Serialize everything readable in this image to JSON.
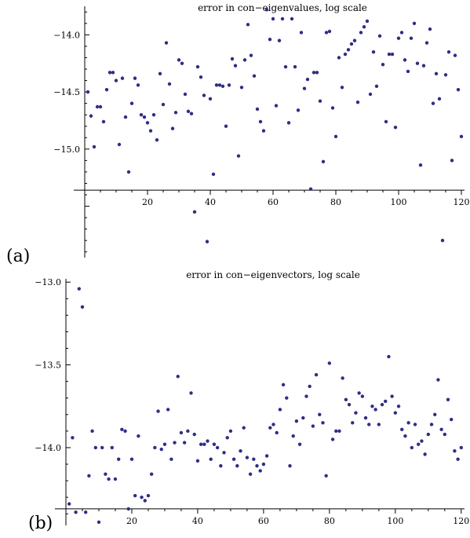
{
  "chart_data": [
    {
      "type": "scatter",
      "panel_label": "(a)",
      "title": "error in con−eigenvalues, log scale",
      "xlabel": "",
      "ylabel": "",
      "log_scale": true,
      "xlim": [
        0,
        121
      ],
      "ylim": [
        -15.95,
        -13.75
      ],
      "x_axis_at_y": -15.36,
      "x_ticks": [
        20,
        40,
        60,
        80,
        100,
        120
      ],
      "y_ticks": [
        -15.0,
        -14.5,
        -14.0
      ],
      "y_tick_labels": [
        "−15.0",
        "−14.5",
        "−14.0"
      ],
      "grid": false,
      "legend": "none",
      "series_color": "#2e2e86",
      "y": [
        -14.5,
        -14.71,
        -14.98,
        -14.63,
        -14.63,
        -14.76,
        -14.48,
        -14.33,
        -14.33,
        -14.4,
        -14.96,
        -14.38,
        -14.72,
        -15.2,
        -14.6,
        -14.38,
        -14.44,
        -14.7,
        -14.72,
        -14.77,
        -14.84,
        -14.7,
        -14.92,
        -14.34,
        -14.61,
        -14.07,
        -14.43,
        -14.82,
        -14.68,
        -14.22,
        -14.25,
        -14.52,
        -14.67,
        -14.69,
        -15.55,
        -14.28,
        -14.37,
        -14.53,
        -15.81,
        -14.56,
        -15.22,
        -14.44,
        -14.44,
        -14.45,
        -14.8,
        -14.44,
        -14.21,
        -14.27,
        -15.06,
        -14.46,
        -14.22,
        -13.91,
        -14.18,
        -14.36,
        -14.65,
        -14.76,
        -14.84,
        -13.78,
        -14.04,
        -13.86,
        -14.62,
        -14.05,
        -13.86,
        -14.28,
        -14.77,
        -13.86,
        -14.28,
        -14.66,
        -13.98,
        -14.47,
        -14.39,
        -15.35,
        -14.33,
        -14.33,
        -14.58,
        -15.11,
        -13.98,
        -13.97,
        -14.64,
        -14.89,
        -14.2,
        -14.46,
        -14.17,
        -14.13,
        -14.08,
        -14.05,
        -14.59,
        -13.98,
        -13.93,
        -13.88,
        -14.52,
        -14.15,
        -14.45,
        -14.01,
        -14.26,
        -14.76,
        -14.17,
        -14.17,
        -14.81,
        -14.03,
        -13.98,
        -14.22,
        -14.32,
        -14.03,
        -13.9,
        -14.25,
        -15.14,
        -14.27,
        -14.07,
        -13.95,
        -14.6,
        -14.34,
        -14.56,
        -15.8,
        -14.35,
        -14.15,
        -15.1,
        -14.18,
        -14.48,
        -14.89
      ]
    },
    {
      "type": "scatter",
      "panel_label": "(b)",
      "title": "error in con−eigenvectors, log scale",
      "xlabel": "",
      "ylabel": "",
      "log_scale": true,
      "xlim": [
        0,
        121
      ],
      "ylim": [
        -14.47,
        -12.98
      ],
      "x_axis_at_y": -14.37,
      "x_ticks": [
        20,
        40,
        60,
        80,
        100,
        120
      ],
      "y_ticks": [
        -14.0,
        -13.5,
        -13.0
      ],
      "y_tick_labels": [
        "−14.0",
        "−13.5",
        "−13.0"
      ],
      "grid": false,
      "legend": "none",
      "series_color": "#2e2e86",
      "y": [
        -14.34,
        -13.94,
        -14.39,
        -13.04,
        -13.15,
        -14.39,
        -14.17,
        -13.9,
        -14.0,
        -14.45,
        -14.0,
        -14.16,
        -14.19,
        -14.0,
        -14.19,
        -14.07,
        -13.89,
        -13.9,
        -14.37,
        -14.07,
        -14.29,
        -13.93,
        -14.3,
        -14.32,
        -14.29,
        -14.16,
        -14.0,
        -13.78,
        -14.01,
        -13.98,
        -13.77,
        -14.07,
        -13.97,
        -13.57,
        -13.91,
        -13.97,
        -13.9,
        -13.67,
        -13.92,
        -14.08,
        -13.98,
        -13.98,
        -13.96,
        -14.07,
        -13.98,
        -14.0,
        -14.11,
        -14.03,
        -13.94,
        -13.9,
        -14.07,
        -14.11,
        -14.02,
        -13.88,
        -14.06,
        -14.16,
        -14.07,
        -14.11,
        -14.14,
        -14.1,
        -14.05,
        -13.88,
        -13.86,
        -13.91,
        -13.77,
        -13.62,
        -13.7,
        -14.11,
        -13.93,
        -13.84,
        -13.98,
        -13.82,
        -13.69,
        -13.63,
        -13.87,
        -13.56,
        -13.8,
        -13.85,
        -14.17,
        -13.49,
        -13.95,
        -13.9,
        -13.9,
        -13.58,
        -13.71,
        -13.74,
        -13.85,
        -13.79,
        -13.67,
        -13.69,
        -13.82,
        -13.86,
        -13.75,
        -13.77,
        -13.86,
        -13.74,
        -13.72,
        -13.45,
        -13.69,
        -13.79,
        -13.75,
        -13.89,
        -13.93,
        -13.85,
        -14.0,
        -13.86,
        -13.98,
        -13.96,
        -14.04,
        -13.92,
        -13.86,
        -13.8,
        -13.59,
        -13.89,
        -13.92,
        -13.71,
        -13.83,
        -14.02,
        -14.07,
        -14.0
      ]
    }
  ]
}
